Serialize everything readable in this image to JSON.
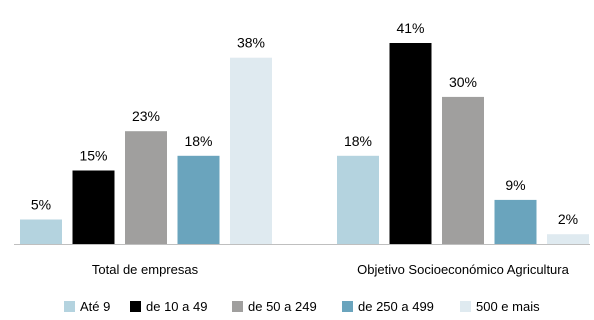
{
  "chart_data": {
    "type": "bar",
    "title": "",
    "xlabel": "",
    "ylabel": "",
    "categories": [
      "Total de empresas",
      "Objetivo Socioeconómico Agricultura"
    ],
    "series": [
      {
        "name": "Até 9",
        "color": "#b4d3df",
        "values": [
          5,
          18
        ],
        "labels": [
          "5%",
          "18%"
        ]
      },
      {
        "name": "de 10 a 49",
        "color": "#000000",
        "values": [
          15,
          41
        ],
        "labels": [
          "15%",
          "41%"
        ]
      },
      {
        "name": "de 50 a 249",
        "color": "#a09f9e",
        "values": [
          23,
          30
        ],
        "labels": [
          "23%",
          "30%"
        ]
      },
      {
        "name": "de 250 a 499",
        "color": "#6aa4bd",
        "values": [
          18,
          9
        ],
        "labels": [
          "18%",
          "9%"
        ]
      },
      {
        "name": "500 e mais",
        "color": "#dfeaf0",
        "values": [
          38,
          2
        ],
        "labels": [
          "38%",
          "2%"
        ]
      }
    ],
    "ylim": [
      0,
      45
    ],
    "grid": false,
    "legend_position": "bottom"
  }
}
